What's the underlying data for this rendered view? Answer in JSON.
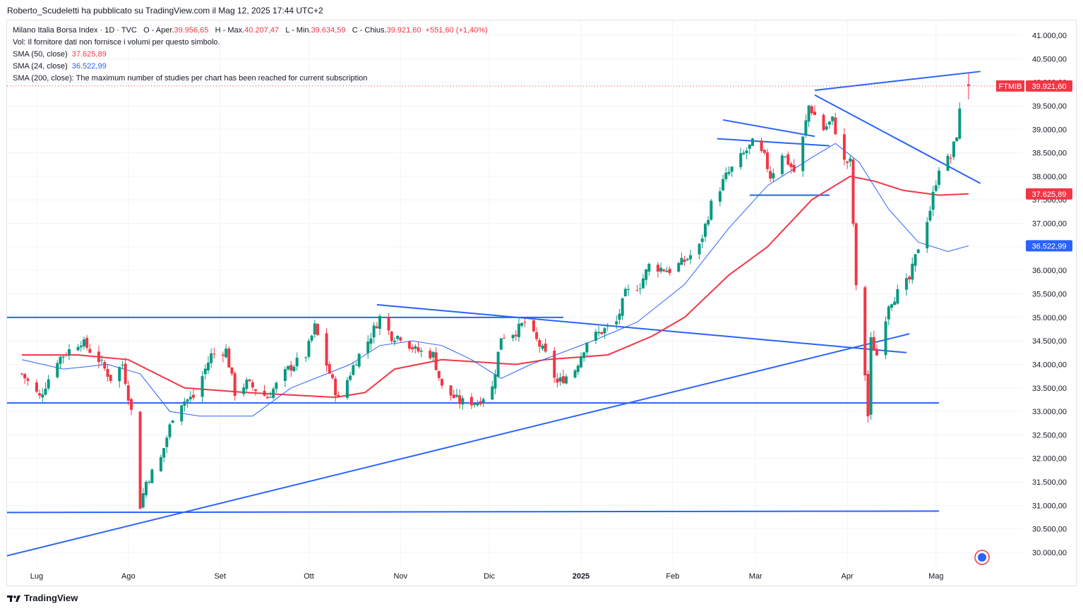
{
  "header": {
    "publisher": "Roberto_Scudeletti ha pubblicato su TradingView.com il Mag 12, 2025 17:44 UTC+2"
  },
  "legend": {
    "symbol": "Milano Italia Borsa Index · 1D · TVC",
    "open_label": "O - Aper.",
    "open": "39.956,65",
    "high_label": "H - Max.",
    "high": "40.207,47",
    "low_label": "L - Min.",
    "low": "39.634,59",
    "close_label": "C - Chius.",
    "close": "39.921,60",
    "change": "+551,60 (+1,40%)",
    "vol": "Vol: Il fornitore dati non fornisce i volumi per questo simbolo.",
    "sma50_label": "SMA (50, close)",
    "sma50": "37.625,89",
    "sma24_label": "SMA (24, close)",
    "sma24": "36.522,99",
    "sma200": "SMA (200, close): The maximum number of studies per chart has been reached for current subscription"
  },
  "price_tags": {
    "ticker": "FTMIB",
    "last": "39.921,60",
    "sma50": "37.625,89",
    "sma24": "36.522,99"
  },
  "footer": {
    "brand": "TradingView"
  },
  "colors": {
    "up": "#089981",
    "down": "#f23645",
    "sma50": "#f23645",
    "sma24": "#2962ff",
    "trend": "#2962ff"
  },
  "chart_data": {
    "type": "candlestick",
    "title": "Milano Italia Borsa Index · 1D · TVC",
    "ylim": [
      29800,
      41400
    ],
    "y_ticks": [
      "30.000,00",
      "30.500,00",
      "31.000,00",
      "31.500,00",
      "32.000,00",
      "32.500,00",
      "33.000,00",
      "33.500,00",
      "34.000,00",
      "34.500,00",
      "35.000,00",
      "35.500,00",
      "36.000,00",
      "36.500,00",
      "37.000,00",
      "37.500,00",
      "38.000,00",
      "38.500,00",
      "39.000,00",
      "39.500,00",
      "40.000,00",
      "40.500,00",
      "41.000,00"
    ],
    "x_labels": [
      {
        "label": "Lug",
        "date": "2024-07-01"
      },
      {
        "label": "Ago",
        "date": "2024-08-01"
      },
      {
        "label": "Set",
        "date": "2024-09-01"
      },
      {
        "label": "Ott",
        "date": "2024-10-01"
      },
      {
        "label": "Nov",
        "date": "2024-11-01"
      },
      {
        "label": "Dic",
        "date": "2024-12-01"
      },
      {
        "label": "2025",
        "date": "2025-01-01"
      },
      {
        "label": "Feb",
        "date": "2025-02-01"
      },
      {
        "label": "Mar",
        "date": "2025-03-01"
      },
      {
        "label": "Apr",
        "date": "2025-04-01"
      },
      {
        "label": "Mag",
        "date": "2025-05-01"
      }
    ],
    "anchors": [
      {
        "date": "2024-06-26",
        "price": 33800
      },
      {
        "date": "2024-07-02",
        "price": 33300
      },
      {
        "date": "2024-07-08",
        "price": 34100
      },
      {
        "date": "2024-07-16",
        "price": 34500
      },
      {
        "date": "2024-07-22",
        "price": 34100
      },
      {
        "date": "2024-07-26",
        "price": 33700
      },
      {
        "date": "2024-07-30",
        "price": 34000
      },
      {
        "date": "2024-08-02",
        "price": 33000
      },
      {
        "date": "2024-08-05",
        "price": 31000
      },
      {
        "date": "2024-08-07",
        "price": 31500
      },
      {
        "date": "2024-08-12",
        "price": 32000
      },
      {
        "date": "2024-08-16",
        "price": 32900
      },
      {
        "date": "2024-08-19",
        "price": 33200
      },
      {
        "date": "2024-08-23",
        "price": 33300
      },
      {
        "date": "2024-08-29",
        "price": 34200
      },
      {
        "date": "2024-09-03",
        "price": 34300
      },
      {
        "date": "2024-09-06",
        "price": 33400
      },
      {
        "date": "2024-09-10",
        "price": 33600
      },
      {
        "date": "2024-09-17",
        "price": 33300
      },
      {
        "date": "2024-09-24",
        "price": 33900
      },
      {
        "date": "2024-09-30",
        "price": 34200
      },
      {
        "date": "2024-10-03",
        "price": 34800
      },
      {
        "date": "2024-10-07",
        "price": 34000
      },
      {
        "date": "2024-10-11",
        "price": 33250
      },
      {
        "date": "2024-10-17",
        "price": 34100
      },
      {
        "date": "2024-10-21",
        "price": 34500
      },
      {
        "date": "2024-10-25",
        "price": 35000
      },
      {
        "date": "2024-10-29",
        "price": 34600
      },
      {
        "date": "2024-11-01",
        "price": 34600
      },
      {
        "date": "2024-11-06",
        "price": 34300
      },
      {
        "date": "2024-11-12",
        "price": 34200
      },
      {
        "date": "2024-11-15",
        "price": 33500
      },
      {
        "date": "2024-11-21",
        "price": 33200
      },
      {
        "date": "2024-11-27",
        "price": 33200
      },
      {
        "date": "2024-12-02",
        "price": 33500
      },
      {
        "date": "2024-12-05",
        "price": 34600
      },
      {
        "date": "2024-12-10",
        "price": 34700
      },
      {
        "date": "2024-12-13",
        "price": 34900
      },
      {
        "date": "2024-12-17",
        "price": 34500
      },
      {
        "date": "2024-12-20",
        "price": 34200
      },
      {
        "date": "2024-12-24",
        "price": 33600
      },
      {
        "date": "2024-12-30",
        "price": 33900
      },
      {
        "date": "2025-01-03",
        "price": 34500
      },
      {
        "date": "2025-01-08",
        "price": 34700
      },
      {
        "date": "2025-01-13",
        "price": 34900
      },
      {
        "date": "2025-01-16",
        "price": 35500
      },
      {
        "date": "2025-01-21",
        "price": 35700
      },
      {
        "date": "2025-01-24",
        "price": 36100
      },
      {
        "date": "2025-01-31",
        "price": 36000
      },
      {
        "date": "2025-02-05",
        "price": 36200
      },
      {
        "date": "2025-02-10",
        "price": 36500
      },
      {
        "date": "2025-02-14",
        "price": 37400
      },
      {
        "date": "2025-02-19",
        "price": 38000
      },
      {
        "date": "2025-02-24",
        "price": 38400
      },
      {
        "date": "2025-02-28",
        "price": 38700
      },
      {
        "date": "2025-03-04",
        "price": 38400
      },
      {
        "date": "2025-03-06",
        "price": 38000
      },
      {
        "date": "2025-03-10",
        "price": 38500
      },
      {
        "date": "2025-03-14",
        "price": 38100
      },
      {
        "date": "2025-03-17",
        "price": 38800
      },
      {
        "date": "2025-03-19",
        "price": 39500
      },
      {
        "date": "2025-03-24",
        "price": 39000
      },
      {
        "date": "2025-03-27",
        "price": 39200
      },
      {
        "date": "2025-03-31",
        "price": 38300
      },
      {
        "date": "2025-04-02",
        "price": 38300
      },
      {
        "date": "2025-04-03",
        "price": 37000
      },
      {
        "date": "2025-04-04",
        "price": 35600
      },
      {
        "date": "2025-04-07",
        "price": 33800
      },
      {
        "date": "2025-04-08",
        "price": 32900
      },
      {
        "date": "2025-04-09",
        "price": 34500
      },
      {
        "date": "2025-04-11",
        "price": 34200
      },
      {
        "date": "2025-04-15",
        "price": 35300
      },
      {
        "date": "2025-04-22",
        "price": 35800
      },
      {
        "date": "2025-04-25",
        "price": 36500
      },
      {
        "date": "2025-04-29",
        "price": 37300
      },
      {
        "date": "2025-05-02",
        "price": 38200
      },
      {
        "date": "2025-05-06",
        "price": 38400
      },
      {
        "date": "2025-05-08",
        "price": 38900
      },
      {
        "date": "2025-05-09",
        "price": 39370
      },
      {
        "date": "2025-05-12",
        "price": 39921.6
      }
    ],
    "last_candle": {
      "date": "2025-05-12",
      "open": 39956.65,
      "high": 40207.47,
      "low": 39634.59,
      "close": 39921.6
    },
    "sma50_points": [
      {
        "date": "2024-06-26",
        "price": 34200
      },
      {
        "date": "2024-07-15",
        "price": 34200
      },
      {
        "date": "2024-08-01",
        "price": 34100
      },
      {
        "date": "2024-08-20",
        "price": 33500
      },
      {
        "date": "2024-09-10",
        "price": 33400
      },
      {
        "date": "2024-10-10",
        "price": 33300
      },
      {
        "date": "2024-10-20",
        "price": 33400
      },
      {
        "date": "2024-10-30",
        "price": 33900
      },
      {
        "date": "2024-11-15",
        "price": 34100
      },
      {
        "date": "2024-12-10",
        "price": 34000
      },
      {
        "date": "2024-12-20",
        "price": 34100
      },
      {
        "date": "2025-01-10",
        "price": 34200
      },
      {
        "date": "2025-01-25",
        "price": 34600
      },
      {
        "date": "2025-02-05",
        "price": 35000
      },
      {
        "date": "2025-02-20",
        "price": 35900
      },
      {
        "date": "2025-03-05",
        "price": 36500
      },
      {
        "date": "2025-03-20",
        "price": 37500
      },
      {
        "date": "2025-04-02",
        "price": 38000
      },
      {
        "date": "2025-04-10",
        "price": 37900
      },
      {
        "date": "2025-04-20",
        "price": 37700
      },
      {
        "date": "2025-05-02",
        "price": 37600
      },
      {
        "date": "2025-05-12",
        "price": 37626
      }
    ],
    "sma24_points": [
      {
        "date": "2024-06-26",
        "price": 34100
      },
      {
        "date": "2024-07-10",
        "price": 33900
      },
      {
        "date": "2024-07-25",
        "price": 34000
      },
      {
        "date": "2024-08-05",
        "price": 33800
      },
      {
        "date": "2024-08-15",
        "price": 33000
      },
      {
        "date": "2024-08-25",
        "price": 32900
      },
      {
        "date": "2024-09-12",
        "price": 32900
      },
      {
        "date": "2024-09-25",
        "price": 33500
      },
      {
        "date": "2024-10-15",
        "price": 34000
      },
      {
        "date": "2024-10-25",
        "price": 34400
      },
      {
        "date": "2024-11-05",
        "price": 34500
      },
      {
        "date": "2024-11-15",
        "price": 34400
      },
      {
        "date": "2024-11-25",
        "price": 34100
      },
      {
        "date": "2024-12-05",
        "price": 33700
      },
      {
        "date": "2024-12-15",
        "price": 34000
      },
      {
        "date": "2025-01-05",
        "price": 34500
      },
      {
        "date": "2025-01-20",
        "price": 34900
      },
      {
        "date": "2025-02-05",
        "price": 35700
      },
      {
        "date": "2025-02-20",
        "price": 36900
      },
      {
        "date": "2025-03-05",
        "price": 37800
      },
      {
        "date": "2025-03-20",
        "price": 38400
      },
      {
        "date": "2025-03-28",
        "price": 38700
      },
      {
        "date": "2025-04-05",
        "price": 38300
      },
      {
        "date": "2025-04-15",
        "price": 37300
      },
      {
        "date": "2025-04-25",
        "price": 36600
      },
      {
        "date": "2025-05-05",
        "price": 36400
      },
      {
        "date": "2025-05-12",
        "price": 36523
      }
    ],
    "trend_lines": [
      {
        "from": {
          "date": "2024-06-21",
          "price": 29930
        },
        "to": {
          "date": "2025-04-22",
          "price": 34650
        }
      },
      {
        "from": {
          "date": "2024-06-21",
          "price": 35000
        },
        "to": {
          "date": "2024-12-26",
          "price": 35000
        }
      },
      {
        "from": {
          "date": "2024-06-21",
          "price": 33180
        },
        "to": {
          "date": "2025-05-02",
          "price": 33180
        }
      },
      {
        "from": {
          "date": "2024-06-21",
          "price": 30850
        },
        "to": {
          "date": "2025-05-02",
          "price": 30880
        }
      },
      {
        "from": {
          "date": "2024-10-24",
          "price": 35270
        },
        "to": {
          "date": "2025-04-21",
          "price": 34250
        }
      },
      {
        "from": {
          "date": "2025-02-18",
          "price": 39200
        },
        "to": {
          "date": "2025-03-21",
          "price": 38850
        }
      },
      {
        "from": {
          "date": "2025-02-16",
          "price": 38800
        },
        "to": {
          "date": "2025-03-26",
          "price": 38650
        }
      },
      {
        "from": {
          "date": "2025-02-27",
          "price": 37600
        },
        "to": {
          "date": "2025-03-26",
          "price": 37600
        }
      },
      {
        "from": {
          "date": "2025-03-21",
          "price": 39830
        },
        "to": {
          "date": "2025-05-16",
          "price": 40230
        }
      },
      {
        "from": {
          "date": "2025-03-21",
          "price": 39730
        },
        "to": {
          "date": "2025-05-16",
          "price": 37850
        }
      }
    ]
  }
}
